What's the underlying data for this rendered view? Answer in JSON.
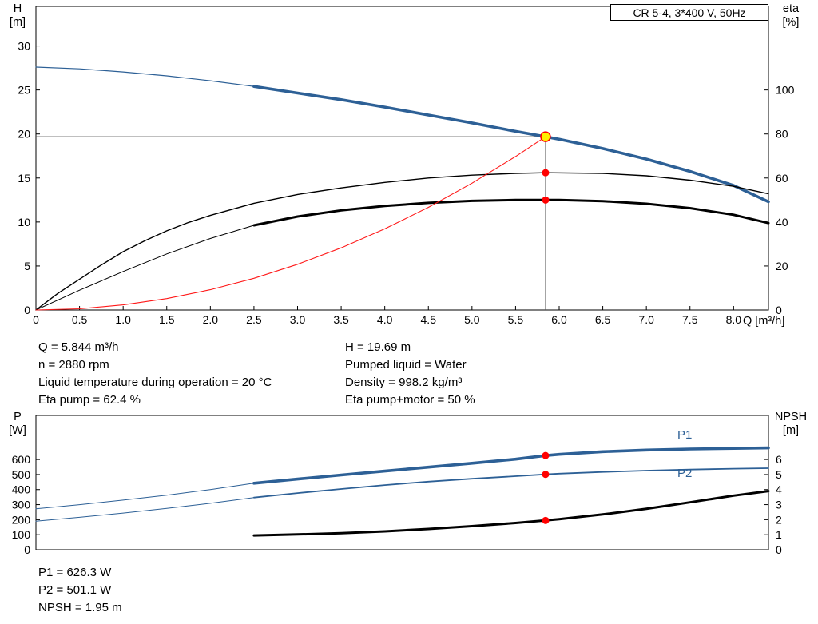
{
  "colors": {
    "blue": "#2d6096",
    "black": "#000000",
    "red": "#ff1a1a",
    "dot_red": "#ff0000",
    "duty_fill": "#ffee00",
    "duty_line": "#555555"
  },
  "title_box": {
    "label": "CR 5-4, 3*400 V, 50Hz"
  },
  "chart_data": [
    {
      "name": "hq-eta-chart",
      "type": "line",
      "x": {
        "title": "Q [m³/h]",
        "lim": [
          0,
          8.4
        ],
        "ticks": [
          {
            "v": 0,
            "label": "0"
          },
          {
            "v": 0.5,
            "label": "0.5"
          },
          {
            "v": 1,
            "label": "1.0"
          },
          {
            "v": 1.5,
            "label": "1.5"
          },
          {
            "v": 2,
            "label": "2.0"
          },
          {
            "v": 2.5,
            "label": "2.5"
          },
          {
            "v": 3,
            "label": "3.0"
          },
          {
            "v": 3.5,
            "label": "3.5"
          },
          {
            "v": 4,
            "label": "4.0"
          },
          {
            "v": 4.5,
            "label": "4.5"
          },
          {
            "v": 5,
            "label": "5.0"
          },
          {
            "v": 5.5,
            "label": "5.5"
          },
          {
            "v": 6,
            "label": "6.0"
          },
          {
            "v": 6.5,
            "label": "6.5"
          },
          {
            "v": 7,
            "label": "7.0"
          },
          {
            "v": 7.5,
            "label": "7.5"
          },
          {
            "v": 8,
            "label": "8.0"
          }
        ]
      },
      "y_left": {
        "title": "H",
        "unit": "[m]",
        "lim": [
          0,
          34.5
        ],
        "ticks": [
          {
            "v": 0,
            "label": "0"
          },
          {
            "v": 5,
            "label": "5"
          },
          {
            "v": 10,
            "label": "10"
          },
          {
            "v": 15,
            "label": "15"
          },
          {
            "v": 20,
            "label": "20"
          },
          {
            "v": 25,
            "label": "25"
          },
          {
            "v": 30,
            "label": "30"
          }
        ]
      },
      "y_right": {
        "title": "eta",
        "unit": "[%]",
        "lim": [
          0,
          138
        ],
        "ticks": [
          {
            "v": 0,
            "label": "0"
          },
          {
            "v": 20,
            "label": "20"
          },
          {
            "v": 40,
            "label": "40"
          },
          {
            "v": 60,
            "label": "60"
          },
          {
            "v": 80,
            "label": "80"
          },
          {
            "v": 100,
            "label": "100"
          }
        ]
      },
      "duty": {
        "q": 5.844,
        "h": 19.69
      },
      "series": [
        {
          "name": "h-curve-lead",
          "axis": "left",
          "color": "blue",
          "width": 1.2,
          "points": [
            [
              0,
              27.6
            ],
            [
              0.5,
              27.4
            ],
            [
              1,
              27.05
            ],
            [
              1.5,
              26.6
            ],
            [
              2,
              26.05
            ],
            [
              2.5,
              25.4
            ]
          ]
        },
        {
          "name": "h-curve",
          "axis": "left",
          "color": "blue",
          "width": 3.6,
          "points": [
            [
              2.5,
              25.4
            ],
            [
              3,
              24.65
            ],
            [
              3.5,
              23.9
            ],
            [
              4,
              23.05
            ],
            [
              4.5,
              22.15
            ],
            [
              5,
              21.25
            ],
            [
              5.5,
              20.3
            ],
            [
              5.844,
              19.69
            ],
            [
              6,
              19.4
            ],
            [
              6.5,
              18.35
            ],
            [
              7,
              17.15
            ],
            [
              7.5,
              15.75
            ],
            [
              8,
              14.15
            ],
            [
              8.4,
              12.3
            ]
          ]
        },
        {
          "name": "eta-pump-curve",
          "axis": "right",
          "color": "black",
          "width": 1.4,
          "points": [
            [
              0,
              0
            ],
            [
              0.25,
              7.5
            ],
            [
              0.5,
              14
            ],
            [
              0.75,
              20.5
            ],
            [
              1,
              26.5
            ],
            [
              1.25,
              31.5
            ],
            [
              1.5,
              36
            ],
            [
              1.75,
              39.8
            ],
            [
              2,
              43
            ],
            [
              2.5,
              48.5
            ],
            [
              3,
              52.5
            ],
            [
              3.5,
              55.5
            ],
            [
              4,
              58
            ],
            [
              4.5,
              60
            ],
            [
              5,
              61.3
            ],
            [
              5.5,
              62.1
            ],
            [
              5.844,
              62.4
            ],
            [
              6.5,
              62.1
            ],
            [
              7,
              61
            ],
            [
              7.5,
              59
            ],
            [
              8,
              56.2
            ],
            [
              8.4,
              52.8
            ]
          ]
        },
        {
          "name": "eta-pump-motor-lead",
          "axis": "right",
          "color": "black",
          "width": 1,
          "points": [
            [
              0,
              0
            ],
            [
              0.5,
              9
            ],
            [
              1,
              17.5
            ],
            [
              1.5,
              25.5
            ],
            [
              2,
              32.5
            ],
            [
              2.5,
              38.5
            ]
          ]
        },
        {
          "name": "eta-pump-motor-curve",
          "axis": "right",
          "color": "black",
          "width": 3,
          "points": [
            [
              2.5,
              38.5
            ],
            [
              3,
              42.5
            ],
            [
              3.5,
              45.3
            ],
            [
              4,
              47.3
            ],
            [
              4.5,
              48.7
            ],
            [
              5,
              49.6
            ],
            [
              5.5,
              50
            ],
            [
              5.844,
              50
            ],
            [
              6,
              50
            ],
            [
              6.5,
              49.5
            ],
            [
              7,
              48.3
            ],
            [
              7.5,
              46.3
            ],
            [
              8,
              43.3
            ],
            [
              8.4,
              39.5
            ]
          ]
        },
        {
          "name": "system-curve",
          "axis": "left",
          "color": "red",
          "width": 1.1,
          "points": [
            [
              0,
              0
            ],
            [
              0.5,
              0.14
            ],
            [
              1,
              0.58
            ],
            [
              1.5,
              1.3
            ],
            [
              2,
              2.31
            ],
            [
              2.5,
              3.6
            ],
            [
              3,
              5.19
            ],
            [
              3.5,
              7.06
            ],
            [
              4,
              9.22
            ],
            [
              4.5,
              11.67
            ],
            [
              5,
              14.41
            ],
            [
              5.5,
              17.44
            ],
            [
              5.844,
              19.69
            ]
          ]
        }
      ],
      "markers": [
        {
          "type": "dot",
          "q": 5.844,
          "v": 62.4,
          "axis": "right"
        },
        {
          "type": "dot",
          "q": 5.844,
          "v": 50,
          "axis": "right"
        },
        {
          "type": "duty",
          "q": 5.844,
          "v": 19.69,
          "axis": "left"
        }
      ]
    },
    {
      "name": "power-npsh-chart",
      "type": "line",
      "x": {
        "title": "",
        "lim": [
          0,
          8.4
        ],
        "ticks": []
      },
      "y_left": {
        "title": "P",
        "unit": "[W]",
        "lim": [
          0,
          893
        ],
        "ticks": [
          {
            "v": 0,
            "label": "0"
          },
          {
            "v": 100,
            "label": "100"
          },
          {
            "v": 200,
            "label": "200"
          },
          {
            "v": 300,
            "label": "300"
          },
          {
            "v": 400,
            "label": "400"
          },
          {
            "v": 500,
            "label": "500"
          },
          {
            "v": 600,
            "label": "600"
          }
        ]
      },
      "y_right": {
        "title": "NPSH",
        "unit": "[m]",
        "lim": [
          0,
          8.93
        ],
        "ticks": [
          {
            "v": 0,
            "label": "0"
          },
          {
            "v": 1,
            "label": "1"
          },
          {
            "v": 2,
            "label": "2"
          },
          {
            "v": 3,
            "label": "3"
          },
          {
            "v": 4,
            "label": "4"
          },
          {
            "v": 5,
            "label": "5"
          },
          {
            "v": 6,
            "label": "6"
          }
        ]
      },
      "series": [
        {
          "name": "p1-curve-lead",
          "axis": "left",
          "color": "blue",
          "width": 1,
          "points": [
            [
              0,
              272
            ],
            [
              0.5,
              300
            ],
            [
              1,
              330
            ],
            [
              1.5,
              363
            ],
            [
              2,
              400
            ],
            [
              2.5,
              442
            ]
          ]
        },
        {
          "name": "p1-curve",
          "axis": "left",
          "color": "blue",
          "width": 3.6,
          "points": [
            [
              2.5,
              442
            ],
            [
              3,
              470
            ],
            [
              3.5,
              497
            ],
            [
              4,
              523
            ],
            [
              4.5,
              549
            ],
            [
              5,
              575
            ],
            [
              5.5,
              602
            ],
            [
              5.844,
              626.3
            ],
            [
              6,
              634
            ],
            [
              6.5,
              652
            ],
            [
              7,
              663
            ],
            [
              7.5,
              670
            ],
            [
              8,
              674
            ],
            [
              8.4,
              677
            ]
          ]
        },
        {
          "name": "p2-curve-lead",
          "axis": "left",
          "color": "blue",
          "width": 1,
          "points": [
            [
              0,
              190
            ],
            [
              0.5,
              216
            ],
            [
              1,
              244
            ],
            [
              1.5,
              275
            ],
            [
              2,
              309
            ],
            [
              2.5,
              347
            ]
          ]
        },
        {
          "name": "p2-curve",
          "axis": "left",
          "color": "blue",
          "width": 1.8,
          "points": [
            [
              2.5,
              347
            ],
            [
              3,
              377
            ],
            [
              3.5,
              404
            ],
            [
              4,
              430
            ],
            [
              4.5,
              453
            ],
            [
              5,
              472
            ],
            [
              5.5,
              489
            ],
            [
              5.844,
              501.1
            ],
            [
              6,
              506
            ],
            [
              6.5,
              517
            ],
            [
              7,
              526
            ],
            [
              7.5,
              533
            ],
            [
              8,
              539
            ],
            [
              8.4,
              542
            ]
          ]
        },
        {
          "name": "npsh-curve",
          "axis": "right",
          "color": "black",
          "width": 3,
          "points": [
            [
              2.5,
              0.95
            ],
            [
              3,
              1.02
            ],
            [
              3.5,
              1.1
            ],
            [
              4,
              1.22
            ],
            [
              4.5,
              1.38
            ],
            [
              5,
              1.57
            ],
            [
              5.5,
              1.78
            ],
            [
              5.844,
              1.95
            ],
            [
              6,
              2.03
            ],
            [
              6.5,
              2.35
            ],
            [
              7,
              2.72
            ],
            [
              7.5,
              3.15
            ],
            [
              8,
              3.6
            ],
            [
              8.4,
              3.9
            ]
          ]
        }
      ],
      "markers": [
        {
          "type": "dot",
          "q": 5.844,
          "v": 626.3,
          "axis": "left"
        },
        {
          "type": "dot",
          "q": 5.844,
          "v": 501.1,
          "axis": "left"
        },
        {
          "type": "dot",
          "q": 5.844,
          "v": 1.95,
          "axis": "right"
        }
      ],
      "curve_labels": [
        {
          "text": "P1"
        },
        {
          "text": "P2"
        }
      ]
    }
  ],
  "operating_text": {
    "left": [
      "Q = 5.844 m³/h",
      "n = 2880 rpm",
      "Liquid temperature during operation = 20 °C",
      "Eta pump = 62.4 %"
    ],
    "right": [
      "H = 19.69 m",
      "Pumped liquid = Water",
      "Density = 998.2 kg/m³",
      "Eta pump+motor = 50 %"
    ]
  },
  "result_text": [
    "P1 = 626.3 W",
    "P2 = 501.1 W",
    "NPSH = 1.95 m"
  ]
}
